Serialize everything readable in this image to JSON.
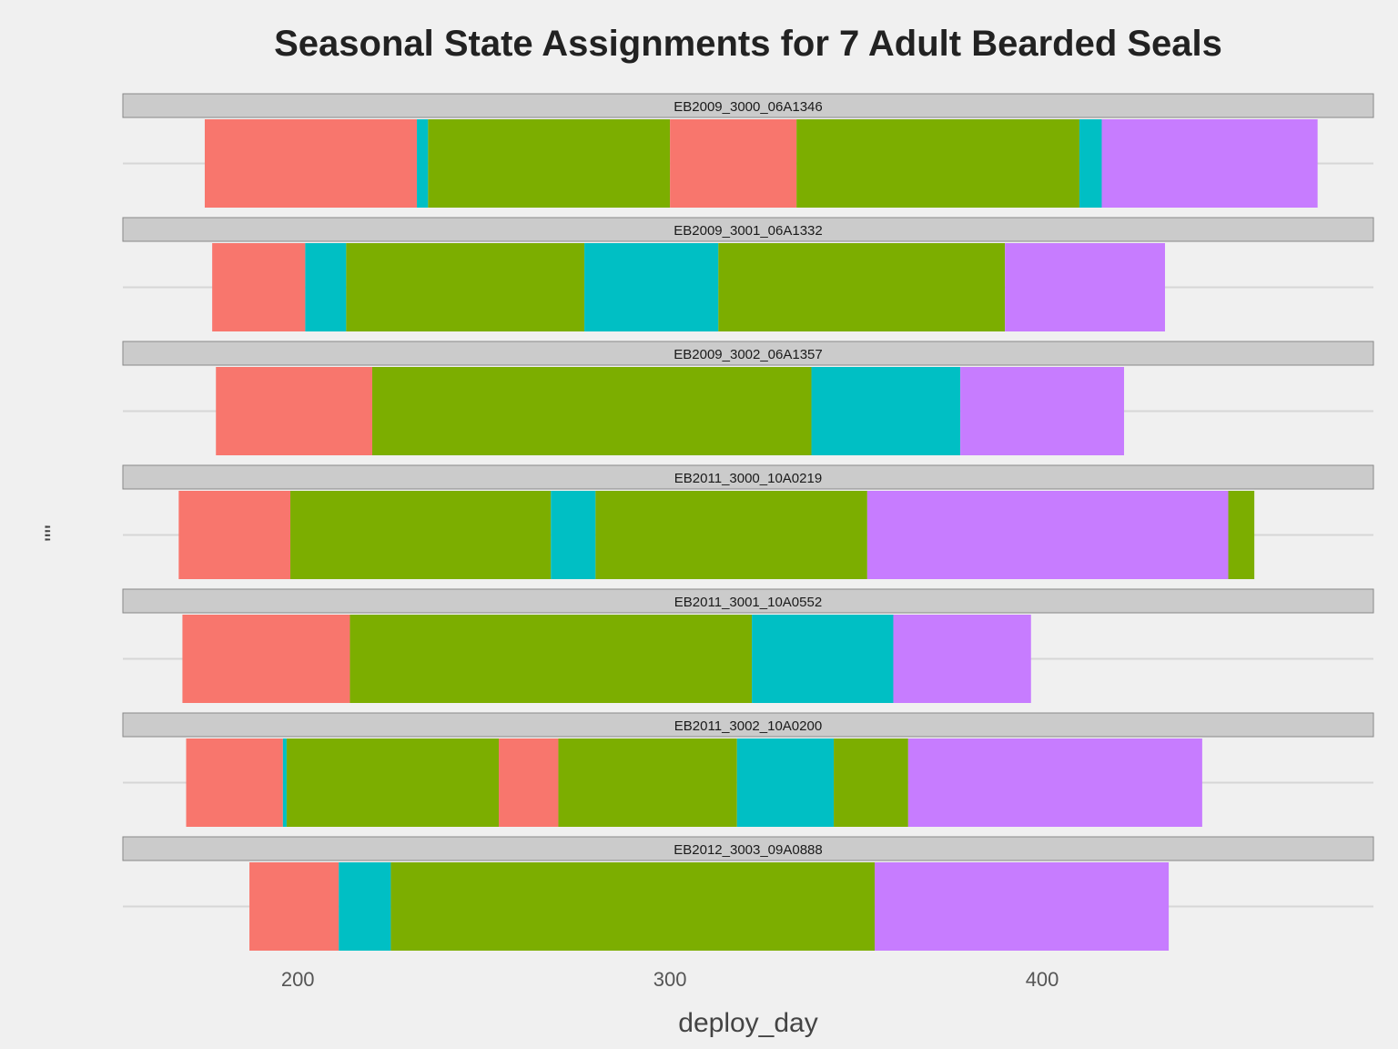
{
  "chart_data": {
    "type": "bar",
    "title": "Seasonal State Assignments for 7 Adult Bearded Seals",
    "xlabel": "deploy_day",
    "ylabel": "\"\"",
    "xlim": [
      153,
      489
    ],
    "x_ticks": [
      200,
      300,
      400
    ],
    "grid": true,
    "legend": "none",
    "colors": {
      "state1": "#f8766d",
      "state2": "#00bfc4",
      "state3": "#7cae00",
      "state4": "#c77cff"
    },
    "panels": [
      {
        "name": "EB2009_3000_06A1346",
        "segments": [
          {
            "start": 175,
            "end": 232,
            "state": "state1"
          },
          {
            "start": 232,
            "end": 235,
            "state": "state2"
          },
          {
            "start": 235,
            "end": 300,
            "state": "state3"
          },
          {
            "start": 300,
            "end": 334,
            "state": "state1"
          },
          {
            "start": 334,
            "end": 410,
            "state": "state3"
          },
          {
            "start": 410,
            "end": 416,
            "state": "state2"
          },
          {
            "start": 416,
            "end": 474,
            "state": "state4"
          }
        ]
      },
      {
        "name": "EB2009_3001_06A1332",
        "segments": [
          {
            "start": 177,
            "end": 202,
            "state": "state1"
          },
          {
            "start": 202,
            "end": 213,
            "state": "state2"
          },
          {
            "start": 213,
            "end": 277,
            "state": "state3"
          },
          {
            "start": 277,
            "end": 313,
            "state": "state2"
          },
          {
            "start": 313,
            "end": 390,
            "state": "state3"
          },
          {
            "start": 390,
            "end": 433,
            "state": "state4"
          }
        ]
      },
      {
        "name": "EB2009_3002_06A1357",
        "segments": [
          {
            "start": 178,
            "end": 220,
            "state": "state1"
          },
          {
            "start": 220,
            "end": 338,
            "state": "state3"
          },
          {
            "start": 338,
            "end": 378,
            "state": "state2"
          },
          {
            "start": 378,
            "end": 422,
            "state": "state4"
          }
        ]
      },
      {
        "name": "EB2011_3000_10A0219",
        "segments": [
          {
            "start": 168,
            "end": 198,
            "state": "state1"
          },
          {
            "start": 198,
            "end": 268,
            "state": "state3"
          },
          {
            "start": 268,
            "end": 280,
            "state": "state2"
          },
          {
            "start": 280,
            "end": 353,
            "state": "state3"
          },
          {
            "start": 353,
            "end": 450,
            "state": "state4"
          },
          {
            "start": 450,
            "end": 457,
            "state": "state3"
          }
        ]
      },
      {
        "name": "EB2011_3001_10A0552",
        "segments": [
          {
            "start": 169,
            "end": 214,
            "state": "state1"
          },
          {
            "start": 214,
            "end": 322,
            "state": "state3"
          },
          {
            "start": 322,
            "end": 360,
            "state": "state2"
          },
          {
            "start": 360,
            "end": 397,
            "state": "state4"
          }
        ]
      },
      {
        "name": "EB2011_3002_10A0200",
        "segments": [
          {
            "start": 170,
            "end": 196,
            "state": "state1"
          },
          {
            "start": 196,
            "end": 197,
            "state": "state2"
          },
          {
            "start": 197,
            "end": 254,
            "state": "state3"
          },
          {
            "start": 254,
            "end": 270,
            "state": "state1"
          },
          {
            "start": 270,
            "end": 318,
            "state": "state3"
          },
          {
            "start": 318,
            "end": 344,
            "state": "state2"
          },
          {
            "start": 344,
            "end": 364,
            "state": "state3"
          },
          {
            "start": 364,
            "end": 443,
            "state": "state4"
          }
        ]
      },
      {
        "name": "EB2012_3003_09A0888",
        "segments": [
          {
            "start": 187,
            "end": 211,
            "state": "state1"
          },
          {
            "start": 211,
            "end": 225,
            "state": "state2"
          },
          {
            "start": 225,
            "end": 355,
            "state": "state3"
          },
          {
            "start": 355,
            "end": 434,
            "state": "state4"
          }
        ]
      }
    ]
  }
}
